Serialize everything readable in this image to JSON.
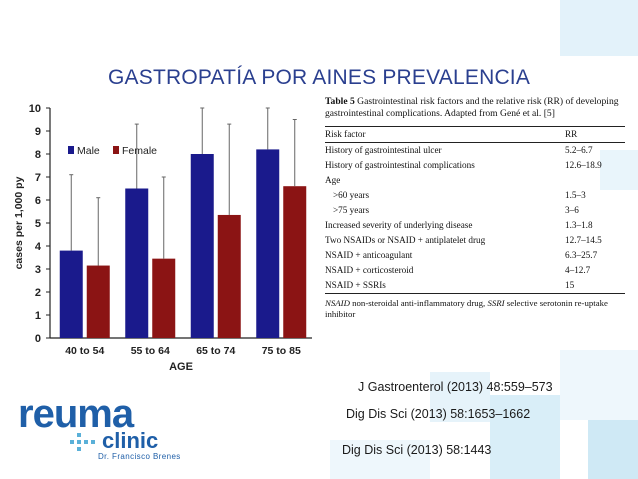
{
  "slide": {
    "title": "GASTROPATÍA POR AINES PREVALENCIA",
    "colors": {
      "title": "#2a3f8f",
      "deco": "#cfe9f5",
      "logo": "#1f5fa8"
    }
  },
  "chart_data": {
    "type": "bar",
    "categories": [
      "40 to 54",
      "55 to 64",
      "65 to 74",
      "75 to 85"
    ],
    "series": [
      {
        "name": "Male",
        "values": [
          3.8,
          6.5,
          8.0,
          8.2
        ],
        "error_upper": [
          7.1,
          9.3,
          10.0,
          10.0
        ],
        "color": "#1a1a8c"
      },
      {
        "name": "Female",
        "values": [
          3.15,
          3.45,
          5.35,
          6.6
        ],
        "error_upper": [
          6.1,
          7.0,
          9.3,
          9.5
        ],
        "color": "#8b1414"
      }
    ],
    "xlabel": "AGE",
    "ylabel": "cases per 1,000 py",
    "ylim": [
      0,
      10
    ],
    "yticks": [
      "0",
      "1",
      "2",
      "3",
      "4",
      "5",
      "6",
      "7",
      "8",
      "9",
      "10"
    ],
    "legend": "top-left",
    "grid": false
  },
  "table": {
    "caption_bold": "Table 5",
    "caption_text": " Gastrointestinal risk factors and the relative risk (RR) of developing gastrointestinal complications. Adapted from Gené et al. [5]",
    "header": {
      "factor": "Risk factor",
      "rr": "RR"
    },
    "rows": [
      {
        "factor": "History of gastrointestinal ulcer",
        "rr": "5.2–6.7",
        "indent": false
      },
      {
        "factor": "History of gastrointestinal complications",
        "rr": "12.6–18.9",
        "indent": false
      },
      {
        "factor": "Age",
        "rr": "",
        "indent": false
      },
      {
        "factor": ">60 years",
        "rr": "1.5–3",
        "indent": true
      },
      {
        "factor": ">75 years",
        "rr": "3–6",
        "indent": true
      },
      {
        "factor": "Increased severity of underlying disease",
        "rr": "1.3–1.8",
        "indent": false
      },
      {
        "factor": "Two NSAIDs or NSAID + antiplatelet drug",
        "rr": "12.7–14.5",
        "indent": false
      },
      {
        "factor": "NSAID + anticoagulant",
        "rr": "6.3–25.7",
        "indent": false
      },
      {
        "factor": "NSAID + corticosteroid",
        "rr": "4–12.7",
        "indent": false
      },
      {
        "factor": "NSAID + SSRIs",
        "rr": "15",
        "indent": false
      }
    ],
    "note_italic": "NSAID",
    "note_mid": " non-steroidal anti-inflammatory drug, ",
    "note_italic2": "SSRI",
    "note_end": " selective serotonin re-uptake inhibitor"
  },
  "references": [
    "J Gastroenterol (2013) 48:559–573",
    "Dig Dis Sci (2013) 58:1653–1662",
    "Dig Dis Sci (2013) 58:1443"
  ],
  "logo": {
    "main": "reuma",
    "sub": "clinic",
    "doctor": "Dr. Francisco Brenes"
  }
}
